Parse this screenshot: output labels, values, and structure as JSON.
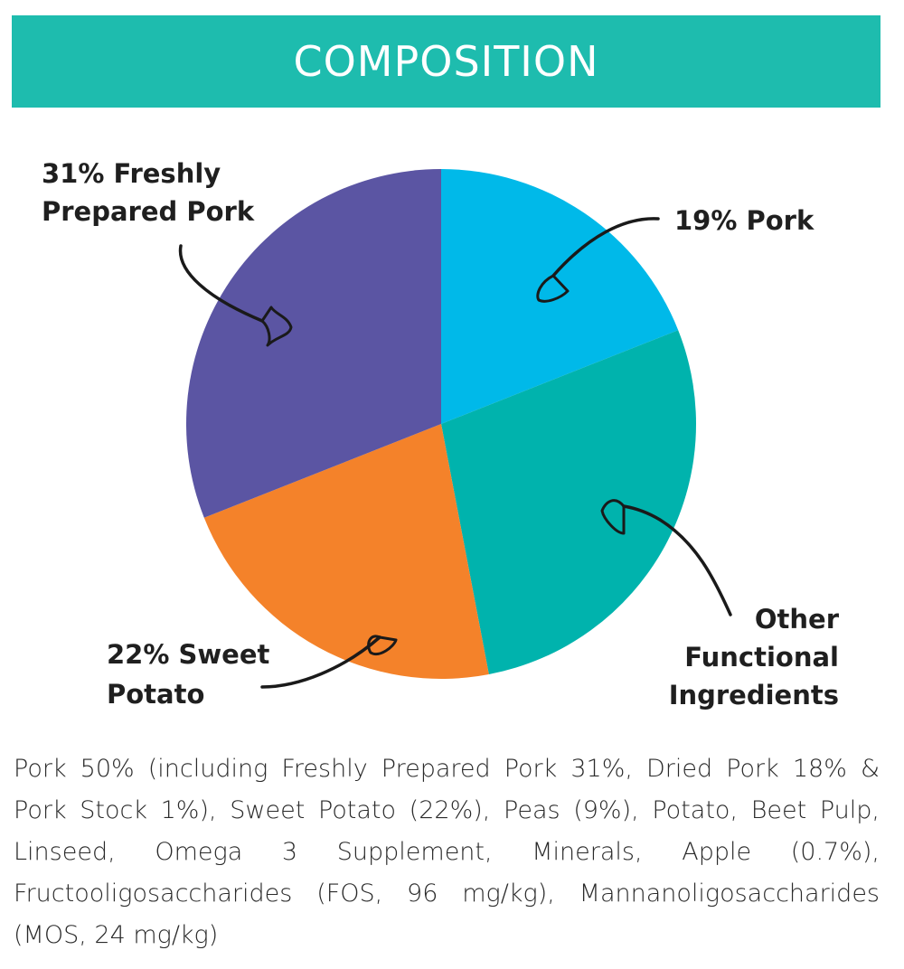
{
  "banner": {
    "title": "COMPOSITION"
  },
  "colors": {
    "banner": "#1ebcae",
    "pork": "#00b9e9",
    "other_functional_ingredients": "#00b3ad",
    "sweet_potato": "#f4822a",
    "freshly_prepared_pork": "#5b55a3"
  },
  "chart_data": {
    "type": "pie",
    "start": "12 o'clock",
    "direction": "clockwise",
    "slices": [
      {
        "key": "pork",
        "value": 19,
        "label_lines": [
          "19% Pork"
        ]
      },
      {
        "key": "other_functional_ingredients",
        "value": 28,
        "label_lines": [
          "Other",
          "Functional",
          "Ingredients"
        ]
      },
      {
        "key": "sweet_potato",
        "value": 22,
        "label_lines": [
          "22% Sweet",
          "Potato"
        ]
      },
      {
        "key": "freshly_prepared_pork",
        "value": 31,
        "label_lines": [
          "31% Freshly",
          "Prepared Pork"
        ]
      }
    ]
  },
  "composition_text": "Pork 50% (including Freshly Prepared Pork 31%, Dried Pork 18% & Pork Stock 1%), Sweet Potato (22%), Peas (9%), Potato, Beet Pulp, Linseed, Omega 3 Supplement, Minerals, Apple (0.7%), Fructooligosaccharides (FOS, 96 mg/kg), Mannanoligosaccharides (MOS, 24 mg/kg)"
}
